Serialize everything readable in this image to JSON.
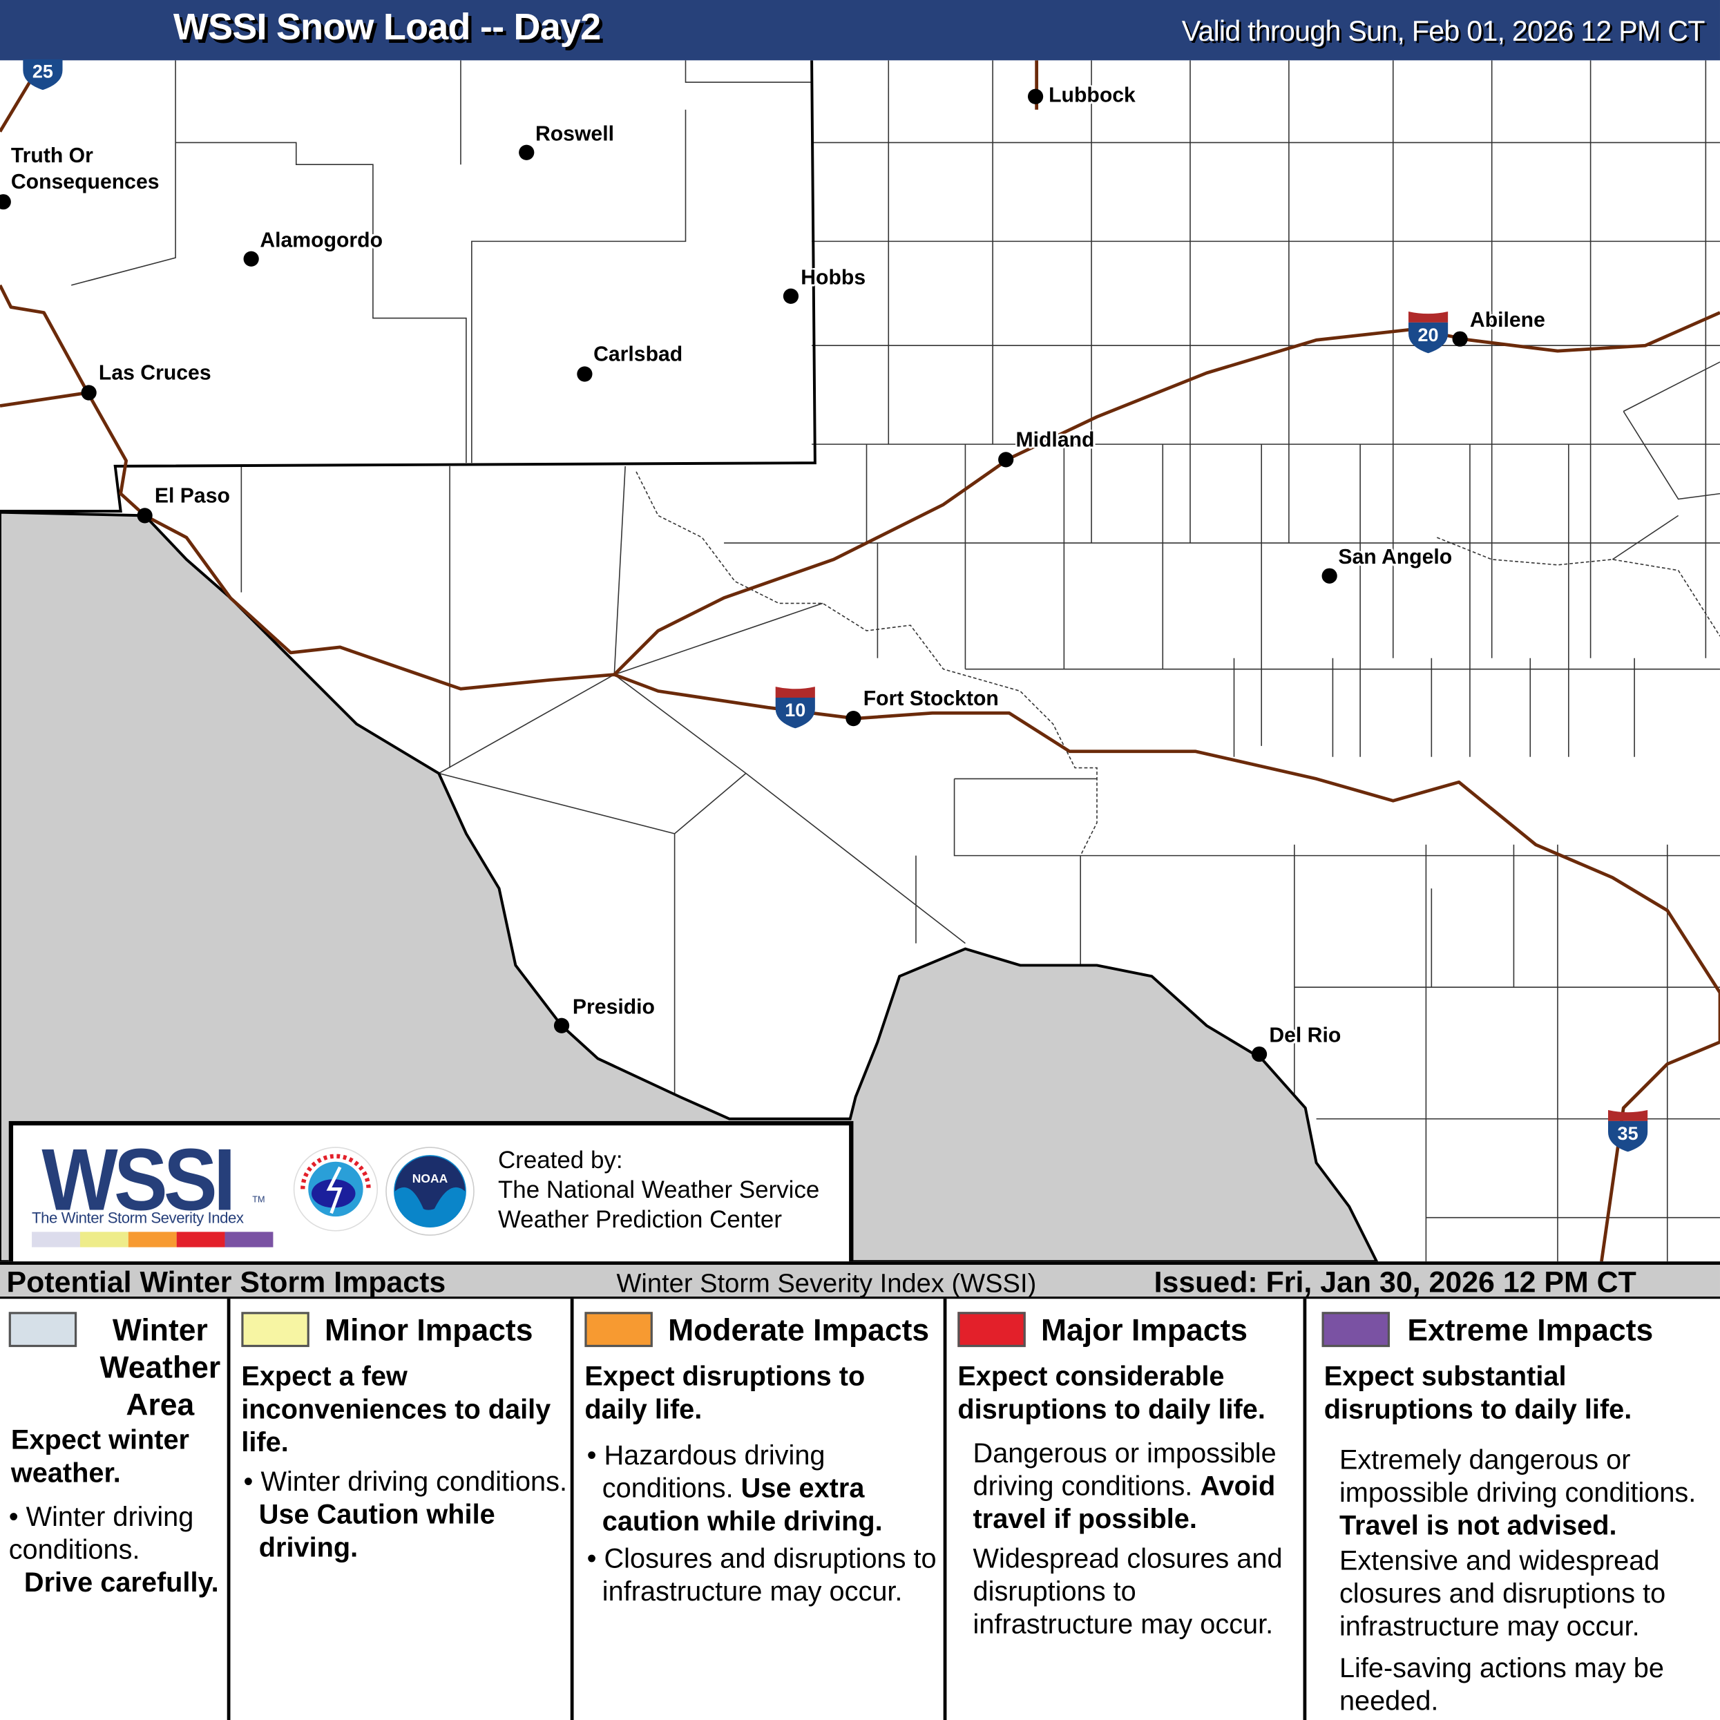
{
  "header": {
    "title": "WSSI Snow Load -- Day2",
    "valid": "Valid through Sun, Feb 01, 2026 12 PM CT"
  },
  "map": {
    "cities": [
      "Lubbock",
      "Roswell",
      "Truth Or",
      "Consequences",
      "Alamogordo",
      "Hobbs",
      "Abilene",
      "Carlsbad",
      "Las Cruces",
      "Midland",
      "El Paso",
      "San Angelo",
      "Fort Stockton",
      "Presidio",
      "Del Rio"
    ],
    "interstates": [
      "25",
      "20",
      "10",
      "35"
    ],
    "colors": {
      "mexico": "#cccccc",
      "roads": "#6b2a0a",
      "interstate_blue": "#1a4a8c",
      "interstate_red": "#b02a2a"
    }
  },
  "logo": {
    "wssi": "WSSI",
    "tm": "TM",
    "subtitle": "The Winter Storm Severity Index",
    "created_by": "Created by:",
    "org1": "The National Weather Service",
    "org2": "Weather Prediction Center",
    "nws_logo": "NATIONAL WEATHER SERVICE",
    "noaa_logo": "NOAA"
  },
  "legend": {
    "left": "Potential Winter Storm Impacts",
    "middle": "Winter Storm Severity Index (WSSI)",
    "issued": "Issued: Fri, Jan 30, 2026 12 PM CT",
    "colors": [
      "#d6e0e8",
      "#f7f5a3",
      "#f79a31",
      "#e3202a",
      "#7a52a3"
    ],
    "categories": [
      {
        "title": "Winter Weather Area",
        "summary": "Expect winter weather.",
        "bullets": [
          "Winter driving conditions."
        ],
        "bold": "Drive carefully."
      },
      {
        "title": "Minor Impacts",
        "summary": "Expect a few inconveniences to daily life.",
        "bullet": "Winter driving conditions.",
        "bold": "Use Caution while driving."
      },
      {
        "title": "Moderate Impacts",
        "summary": "Expect disruptions to daily life.",
        "bullet1": "Hazardous driving conditions.",
        "bold": "Use extra caution while driving.",
        "bullet2": "Closures and disruptions to infrastructure may occur."
      },
      {
        "title": "Major Impacts",
        "summary": "Expect considerable disruptions to daily life.",
        "text1": "Dangerous or impossible driving conditions.",
        "bold": "Avoid travel if possible.",
        "text2": "Widespread closures and disruptions to infrastructure may occur."
      },
      {
        "title": "Extreme Impacts",
        "summary": "Expect substantial disruptions to daily life.",
        "text1": "Extremely dangerous or impossible driving conditions.",
        "bold": "Travel is not advised.",
        "text2": "Extensive and widespread closures and disruptions to infrastructure may occur.",
        "text3": "Life-saving actions may be needed."
      }
    ]
  }
}
